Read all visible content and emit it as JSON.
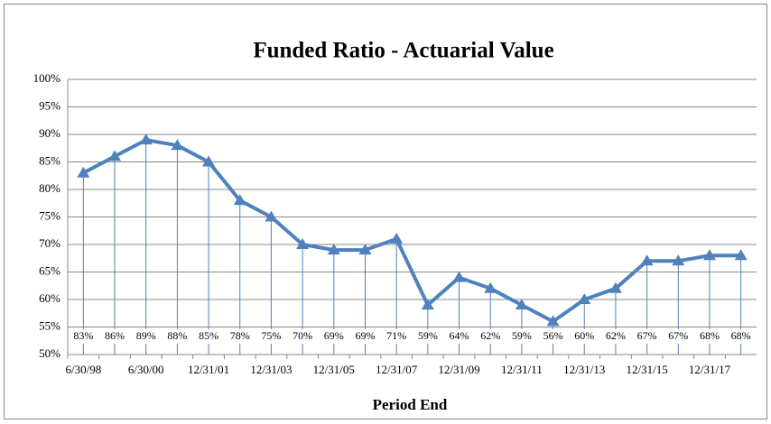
{
  "chart_data": {
    "type": "line",
    "title": "Funded Ratio - Actuarial Value",
    "x_label": "Period End",
    "categories": [
      "6/30/98",
      null,
      "6/30/00",
      null,
      "12/31/01",
      null,
      "12/31/03",
      null,
      "12/31/05",
      null,
      "12/31/07",
      null,
      "12/31/09",
      null,
      "12/31/11",
      null,
      "12/31/13",
      null,
      "12/31/15",
      null,
      "12/31/17",
      null
    ],
    "series": [
      {
        "name": "Funded Ratio",
        "color": "#4f81bd",
        "values": [
          83,
          86,
          89,
          88,
          85,
          78,
          75,
          70,
          69,
          69,
          71,
          59,
          64,
          62,
          59,
          56,
          60,
          62,
          67,
          67,
          68,
          68
        ],
        "value_labels": [
          "83%",
          "86%",
          "89%",
          "88%",
          "85%",
          "78%",
          "75%",
          "70%",
          "69%",
          "69%",
          "71%",
          "59%",
          "64%",
          "62%",
          "59%",
          "56%",
          "60%",
          "62%",
          "67%",
          "67%",
          "68%",
          "68%"
        ]
      }
    ],
    "ylim": [
      50,
      100
    ],
    "yticks": [
      {
        "value": 50,
        "label": "50%"
      },
      {
        "value": 55,
        "label": "55%"
      },
      {
        "value": 60,
        "label": "60%"
      },
      {
        "value": 65,
        "label": "65%"
      },
      {
        "value": 70,
        "label": "70%"
      },
      {
        "value": 75,
        "label": "75%"
      },
      {
        "value": 80,
        "label": "80%"
      },
      {
        "value": 85,
        "label": "85%"
      },
      {
        "value": 90,
        "label": "90%"
      },
      {
        "value": 95,
        "label": "95%"
      },
      {
        "value": 100,
        "label": "100%"
      }
    ],
    "grid": true,
    "drop_lines": true
  }
}
